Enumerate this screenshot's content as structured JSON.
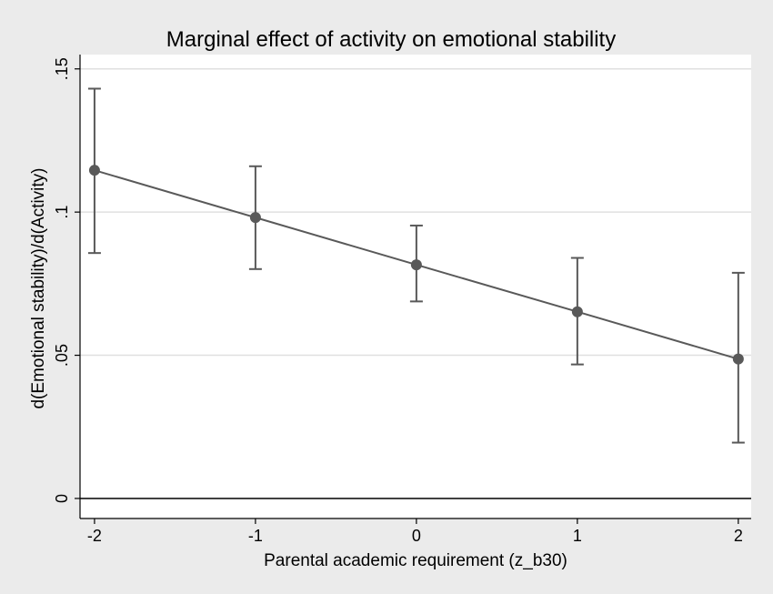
{
  "chart_data": {
    "type": "line",
    "title": "Marginal effect of activity on emotional stability",
    "xlabel": "Parental academic requirement (z_b30)",
    "ylabel": "d(Emotional stability)/d(Activity)",
    "x": [
      -2,
      -1,
      0,
      1,
      2
    ],
    "xticks": [
      "-2",
      "-1",
      "0",
      "1",
      "2"
    ],
    "yticks": [
      0,
      0.05,
      0.1,
      0.15
    ],
    "ytick_labels": [
      "0",
      ".05",
      ".1",
      ".15"
    ],
    "ylim": [
      -0.007,
      0.155
    ],
    "xlim": [
      -2.09,
      2.08
    ],
    "grid": true,
    "reference_line_y": 0,
    "series": [
      {
        "name": "Marginal effect",
        "values": [
          0.1146,
          0.0981,
          0.0816,
          0.0652,
          0.0487
        ],
        "ci_lower": [
          0.0857,
          0.0801,
          0.0688,
          0.0468,
          0.0195
        ],
        "ci_upper": [
          0.1431,
          0.116,
          0.0953,
          0.084,
          0.0788
        ]
      }
    ],
    "colors": {
      "line": "#595959",
      "grid": "#e0e0e0",
      "background": "#ebebeb",
      "plot": "#ffffff"
    }
  }
}
